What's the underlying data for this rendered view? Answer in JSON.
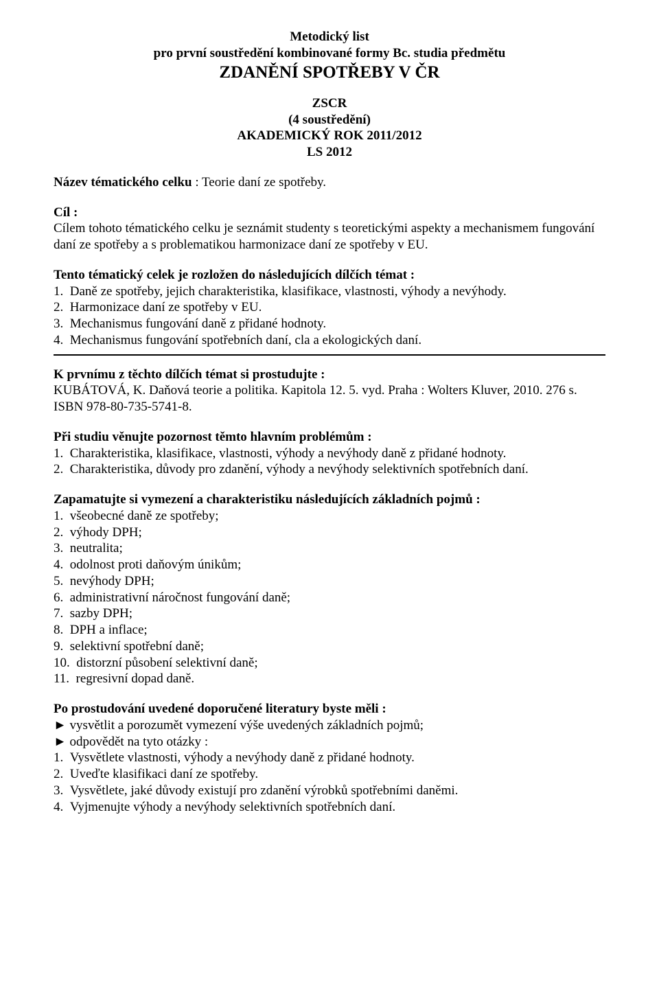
{
  "header": {
    "line1": "Metodický list",
    "line2": "pro první soustředění kombinované formy Bc. studia předmětu",
    "title": "ZDANĚNÍ SPOTŘEBY V ČR",
    "sub1": "ZSCR",
    "sub2": "(4 soustředění)",
    "sub3": "AKADEMICKÝ ROK 2011/2012",
    "sub4": "LS 2012"
  },
  "topic": {
    "label": "Název tématického celku",
    "value": " : Teorie daní ze spotřeby."
  },
  "goal": {
    "label": "Cíl :",
    "text": "Cílem tohoto tématického celku je seznámit studenty s teoretickými aspekty a mechanismem fungování daní ze spotřeby a s problematikou harmonizace daní ze spotřeby v EU."
  },
  "subtopics": {
    "label": "Tento tématický celek je rozložen do následujících dílčích témat :",
    "items": [
      "Daně ze spotřeby, jejich charakteristika, klasifikace, vlastnosti, výhody a nevýhody.",
      "Harmonizace daní ze spotřeby v EU.",
      "Mechanismus fungování daně z přidané hodnoty.",
      "Mechanismus fungování spotřebních daní, cla a ekologických daní."
    ]
  },
  "study_first": {
    "label": "K prvnímu z těchto dílčích témat si prostudujte :",
    "text": "KUBÁTOVÁ, K. Daňová teorie a politika. Kapitola 12. 5. vyd. Praha : Wolters Kluver, 2010. 276 s. ISBN 978-80-735-5741-8."
  },
  "problems": {
    "label": "Při studiu věnujte pozornost těmto hlavním problémům :",
    "items": [
      "Charakteristika, klasifikace, vlastnosti, výhody a nevýhody daně z přidané hodnoty.",
      "Charakteristika, důvody pro zdanění, výhody a nevýhody selektivních spotřebních daní."
    ]
  },
  "terms": {
    "label": "Zapamatujte si vymezení a charakteristiku následujících základních pojmů :",
    "items": [
      "všeobecné daně ze spotřeby;",
      "výhody DPH;",
      "neutralita;",
      "odolnost proti daňovým únikům;",
      "nevýhody DPH;",
      "administrativní náročnost fungování daně;",
      "sazby DPH;",
      "DPH a inflace;",
      "selektivní spotřební daně;",
      "distorzní působení selektivní daně;",
      "regresivní dopad daně."
    ]
  },
  "after_study": {
    "label": "Po prostudování uvedené doporučené literatury byste měli :",
    "bullets": [
      "vysvětlit a porozumět vymezení výše uvedených základních pojmů;",
      "odpovědět na tyto otázky :"
    ],
    "questions": [
      "Vysvětlete vlastnosti, výhody a nevýhody daně z přidané hodnoty.",
      "Uveďte klasifikaci daní ze spotřeby.",
      "Vysvětlete, jaké důvody existují pro zdanění výrobků spotřebními daněmi.",
      "Vyjmenujte výhody a nevýhody selektivních spotřebních daní."
    ]
  },
  "marker": "►"
}
